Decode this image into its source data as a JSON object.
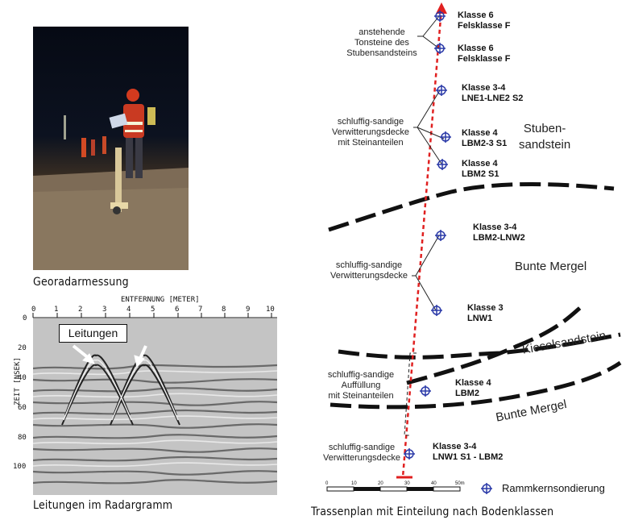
{
  "photo": {
    "caption": "Georadarmessung"
  },
  "radargram": {
    "caption": "Leitungen im Radargramm",
    "xlabel": "ENTFERNUNG [METER]",
    "ylabel": "ZEIT [NSEK]",
    "x_ticks": [
      "0",
      "1",
      "2",
      "3",
      "4",
      "5",
      "6",
      "7",
      "8",
      "9",
      "10"
    ],
    "y_ticks": [
      "0",
      "20",
      "40",
      "60",
      "80",
      "100"
    ],
    "annotation": "Leitungen"
  },
  "map": {
    "title": "Trassenplan mit Einteilung nach Bodenklassen",
    "sample_labels": [
      {
        "line1": "Klasse 6",
        "line2": "Felsklasse F"
      },
      {
        "line1": "Klasse 6",
        "line2": "Felsklasse F"
      },
      {
        "line1": "Klasse 3-4",
        "line2": "LNE1-LNE2 S2"
      },
      {
        "line1": "Klasse 4",
        "line2": "LBM2-3 S1"
      },
      {
        "line1": "Klasse 4",
        "line2": "LBM2 S1"
      },
      {
        "line1": "Klasse 3-4",
        "line2": "LBM2-LNW2"
      },
      {
        "line1": "Klasse 3",
        "line2": "LNW1"
      },
      {
        "line1": "Klasse 4",
        "line2": "LBM2"
      },
      {
        "line1": "Klasse 3-4",
        "line2": "LNW1 S1 - LBM2"
      }
    ],
    "descriptions": [
      {
        "lines": [
          "anstehende",
          "Tonsteine des",
          "Stubensandsteins"
        ]
      },
      {
        "lines": [
          "schluffig-sandige",
          "Verwitterungsdecke",
          "mit Steinanteilen"
        ]
      },
      {
        "lines": [
          "schluffig-sandige",
          "Verwitterungsdecke"
        ]
      },
      {
        "lines": [
          "schluffig-sandige",
          "Auffüllung",
          "mit Steinanteilen"
        ]
      },
      {
        "lines": [
          "schluffig-sandige",
          "Verwitterungsdecke"
        ]
      }
    ],
    "formations": {
      "stuben_line1": "Stuben-",
      "stuben_line2": "sandstein",
      "bunte_mergel_1": "Bunte Mergel",
      "kieselsandstein": "Kieselsandstein",
      "bunte_mergel_2": "Bunte Mergel"
    },
    "scale": {
      "ticks": [
        "0",
        "10",
        "20",
        "30",
        "40",
        "50m"
      ]
    },
    "legend": {
      "label": "Rammkernsondierung",
      "icon": "crosshair-circle-icon",
      "color": "#2b3aa8"
    },
    "colors": {
      "route": "#e02020",
      "marker": "#2b3aa8",
      "boundary": "#111111"
    }
  }
}
